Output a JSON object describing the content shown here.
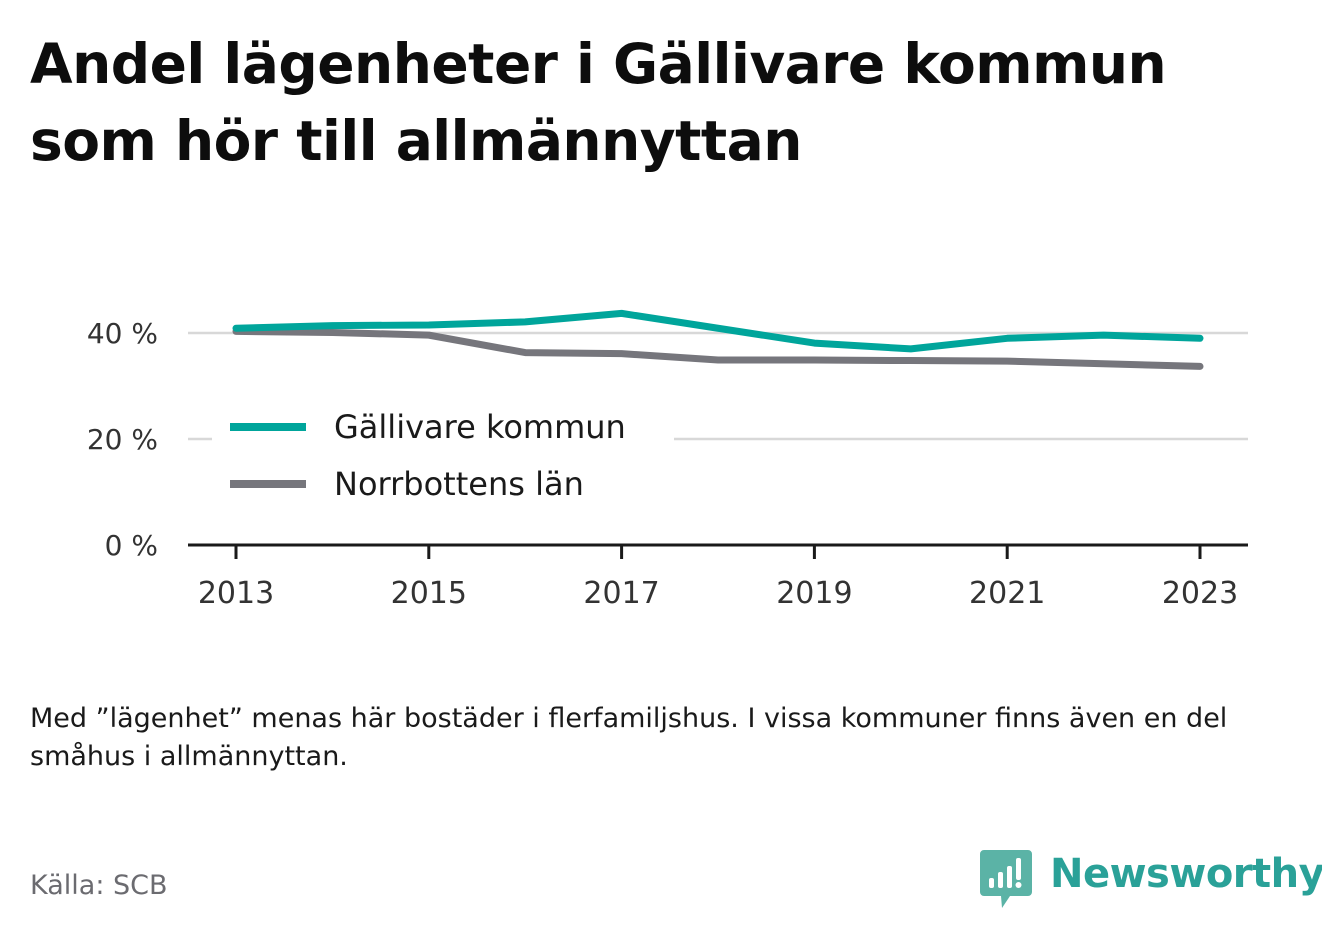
{
  "title": "Andel lägenheter i Gällivare kommun som hör till allmännyttan",
  "note": "Med ”lägenhet” menas här bostäder i flerfamiljshus. I vissa kommuner finns även en del småhus i allmännyttan.",
  "source": "Källa: SCB",
  "brand": "Newsworthy",
  "colors": {
    "gallivare": "#00a59b",
    "norrbotten": "#76767c",
    "brand": "#2aa198",
    "grid": "#d8d8d8",
    "axis": "#1a1a1a"
  },
  "chart_data": {
    "type": "line",
    "x": [
      2013,
      2014,
      2015,
      2016,
      2017,
      2018,
      2019,
      2020,
      2021,
      2022,
      2023
    ],
    "xticks": [
      "2013",
      "2015",
      "2017",
      "2019",
      "2021",
      "2023"
    ],
    "yticks": [
      "0 %",
      "20 %",
      "40 %"
    ],
    "ylim": [
      0,
      40
    ],
    "grid": true,
    "legend_position": "center-left",
    "series": [
      {
        "name": "Gällivare kommun",
        "values": [
          40.9,
          41.4,
          41.5,
          42.1,
          43.7,
          40.9,
          38.1,
          37.0,
          39.0,
          39.6,
          39.0
        ]
      },
      {
        "name": "Norrbottens län",
        "values": [
          40.3,
          40.1,
          39.6,
          36.3,
          36.1,
          34.9,
          34.9,
          34.8,
          34.7,
          34.2,
          33.7
        ]
      }
    ]
  }
}
